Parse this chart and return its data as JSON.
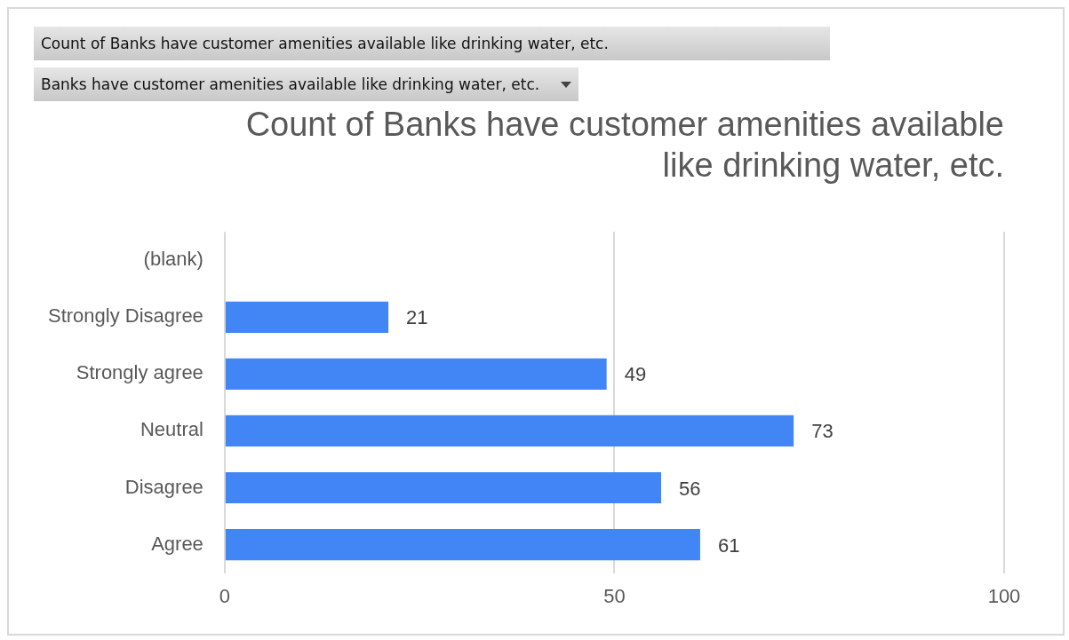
{
  "chart_data": {
    "type": "bar",
    "orientation": "horizontal",
    "title": "Count of Banks have customer amenities available like drinking water, etc.",
    "annotations": [
      "Count of Banks have customer amenities available like drinking water, etc.",
      "Banks have customer amenities available like drinking water, etc."
    ],
    "categories": [
      "(blank)",
      "Strongly Disagree",
      "Strongly agree",
      "Neutral",
      "Disagree",
      "Agree"
    ],
    "values": [
      null,
      21,
      49,
      73,
      56,
      61
    ],
    "color": "#4285f4",
    "xlim": [
      0,
      100
    ],
    "xticks": [
      0,
      50,
      100
    ],
    "grid": "x",
    "legend": false,
    "data_labels": true
  }
}
